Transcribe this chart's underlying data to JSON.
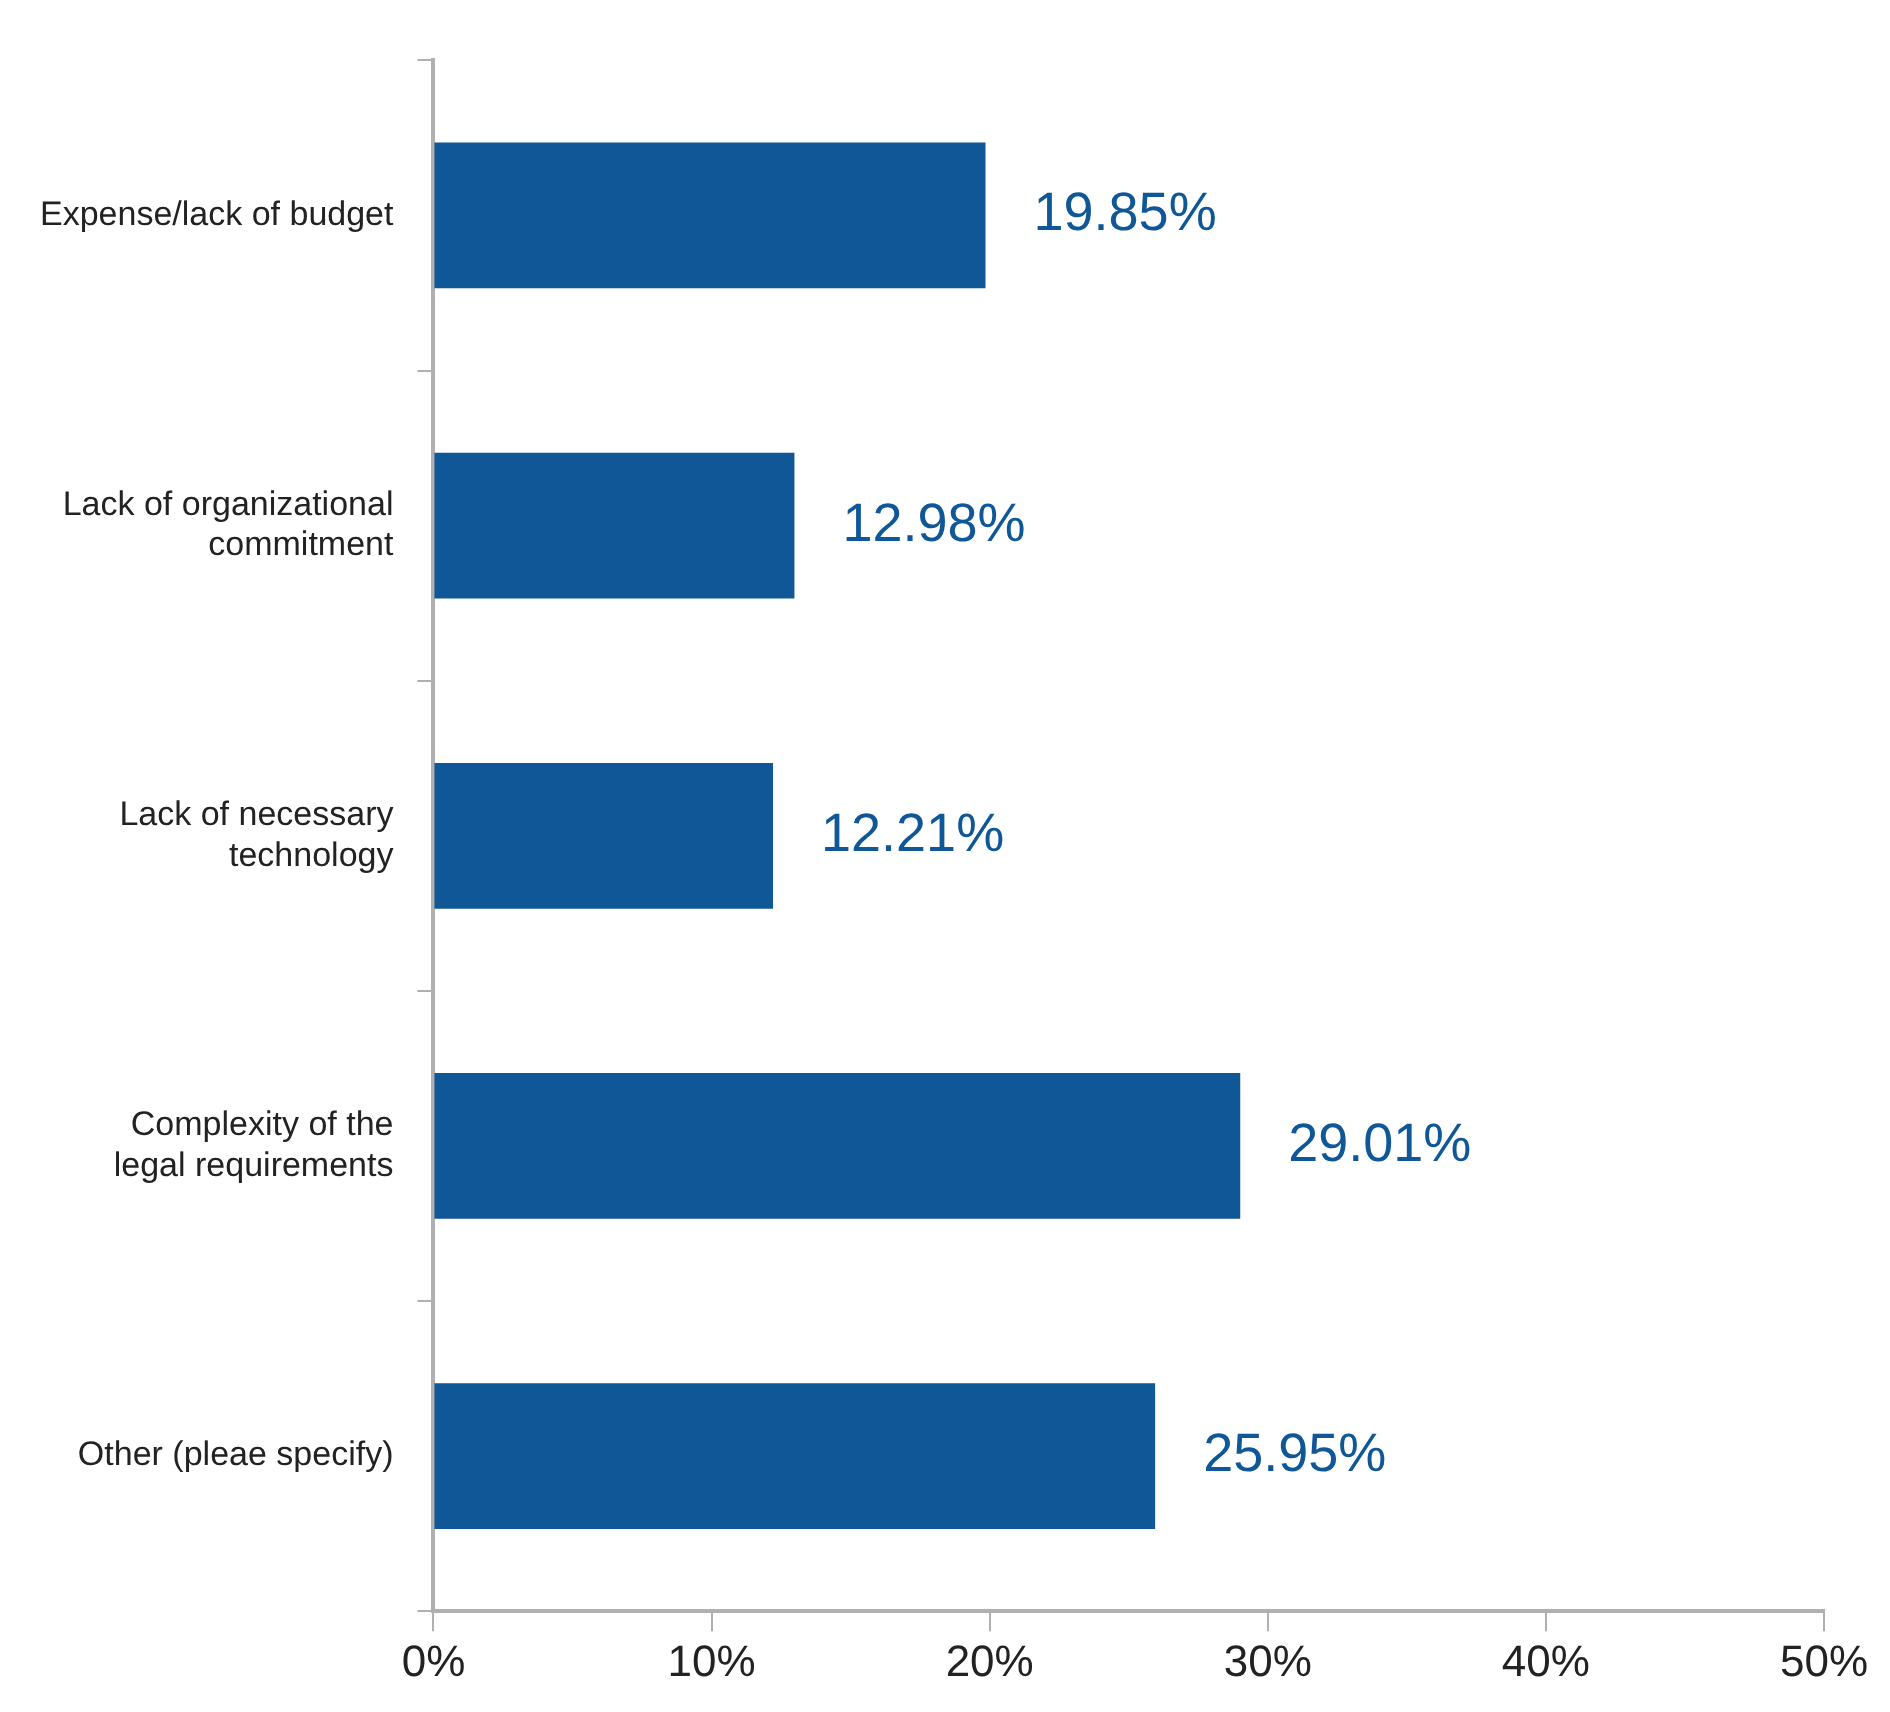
{
  "chart_data": {
    "type": "bar",
    "orientation": "horizontal",
    "categories": [
      "Expense/lack of budget",
      "Lack of organizational commitment",
      "Lack of necessary technology",
      "Complexity of the legal requirements",
      "Other (pleae specify)"
    ],
    "values": [
      19.85,
      12.98,
      12.21,
      29.01,
      25.95
    ],
    "value_labels": [
      "19.85%",
      "12.98%",
      "12.21%",
      "29.01%",
      "25.95%"
    ],
    "color": "#0f5796",
    "xlim": [
      0,
      50
    ],
    "xticks": [
      {
        "value": 0,
        "label": "0%"
      },
      {
        "value": 10,
        "label": "10%"
      },
      {
        "value": 20,
        "label": "20%"
      },
      {
        "value": 30,
        "label": "30%"
      },
      {
        "value": 40,
        "label": "40%"
      },
      {
        "value": 50,
        "label": "50%"
      }
    ],
    "grid": false,
    "legend": false
  }
}
